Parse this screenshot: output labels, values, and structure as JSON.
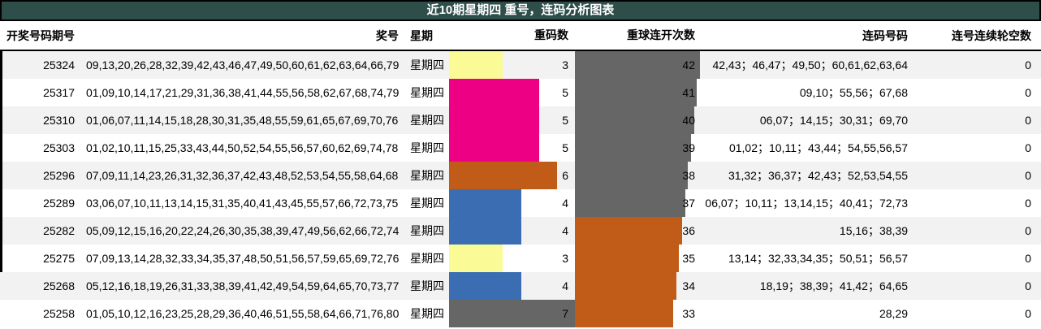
{
  "title": "近10期星期四 重号，连码分析图表",
  "header": {
    "period": "开奖号码期号",
    "numbers": "奖号",
    "week": "星期",
    "dup": "重码数",
    "streak": "重球连开次数",
    "pairs": "连码号码",
    "skip": "连号连续轮空数"
  },
  "colors": {
    "title_bg": "#2E4E4A",
    "stripe": "#F2F2F2",
    "yellow": "#FAFA96",
    "magenta": "#EE0084",
    "orange": "#C05C18",
    "blue": "#3B6DB3",
    "gray": "#666666"
  },
  "scales": {
    "dup_max": 7,
    "streak_max": 42
  },
  "rows": [
    {
      "period": "25324",
      "numbers": "09,13,20,26,28,32,39,42,43,46,47,49,50,60,61,62,63,64,66,79",
      "week": "星期四",
      "dup": "3",
      "dup_color": "yellow",
      "streak": "42",
      "streak_color": "gray",
      "pairs": "42,43；46,47；49,50；60,61,62,63,64",
      "skip": "0"
    },
    {
      "period": "25317",
      "numbers": "01,09,10,14,17,21,29,31,36,38,41,44,55,56,58,62,67,68,74,79",
      "week": "星期四",
      "dup": "5",
      "dup_color": "magenta",
      "streak": "41",
      "streak_color": "gray",
      "pairs": "09,10；55,56；67,68",
      "skip": "0"
    },
    {
      "period": "25310",
      "numbers": "01,06,07,11,14,15,18,28,30,31,35,48,55,59,61,65,67,69,70,76",
      "week": "星期四",
      "dup": "5",
      "dup_color": "magenta",
      "streak": "40",
      "streak_color": "gray",
      "pairs": "06,07；14,15；30,31；69,70",
      "skip": "0"
    },
    {
      "period": "25303",
      "numbers": "01,02,10,11,15,25,33,43,44,50,52,54,55,56,57,60,62,69,74,78",
      "week": "星期四",
      "dup": "5",
      "dup_color": "magenta",
      "streak": "39",
      "streak_color": "gray",
      "pairs": "01,02；10,11；43,44；54,55,56,57",
      "skip": "0"
    },
    {
      "period": "25296",
      "numbers": "07,09,11,14,23,26,31,32,36,37,42,43,48,52,53,54,55,58,64,68",
      "week": "星期四",
      "dup": "6",
      "dup_color": "orange",
      "streak": "38",
      "streak_color": "gray",
      "pairs": "31,32；36,37；42,43；52,53,54,55",
      "skip": "0"
    },
    {
      "period": "25289",
      "numbers": "03,06,07,10,11,13,14,15,31,35,40,41,43,45,55,57,66,72,73,75",
      "week": "星期四",
      "dup": "4",
      "dup_color": "blue",
      "streak": "37",
      "streak_color": "gray",
      "pairs": "06,07；10,11；13,14,15；40,41；72,73",
      "skip": "0"
    },
    {
      "period": "25282",
      "numbers": "05,09,12,15,16,20,22,24,26,30,35,38,39,47,49,56,62,66,72,74",
      "week": "星期四",
      "dup": "4",
      "dup_color": "blue",
      "streak": "36",
      "streak_color": "orange",
      "pairs": "15,16；38,39",
      "skip": "0"
    },
    {
      "period": "25275",
      "numbers": "07,09,13,14,28,32,33,34,35,37,48,50,51,56,57,59,65,69,72,76",
      "week": "星期四",
      "dup": "3",
      "dup_color": "yellow",
      "streak": "35",
      "streak_color": "orange",
      "pairs": "13,14；32,33,34,35；50,51；56,57",
      "skip": "0"
    },
    {
      "period": "25268",
      "numbers": "05,12,16,18,19,26,31,33,38,39,41,42,49,54,59,64,65,70,73,77",
      "week": "星期四",
      "dup": "4",
      "dup_color": "blue",
      "streak": "34",
      "streak_color": "orange",
      "pairs": "18,19；38,39；41,42；64,65",
      "skip": "0"
    },
    {
      "period": "25258",
      "numbers": "01,05,10,12,16,23,25,28,29,36,40,46,51,55,58,64,66,71,76,80",
      "week": "星期四",
      "dup": "7",
      "dup_color": "gray",
      "streak": "33",
      "streak_color": "orange",
      "pairs": "28,29",
      "skip": "0"
    }
  ],
  "chart_data": {
    "type": "table",
    "title": "近10期星期四 重号，连码分析图表",
    "columns": [
      "开奖号码期号",
      "奖号",
      "星期",
      "重码数",
      "重球连开次数",
      "连码号码",
      "连号连续轮空数"
    ],
    "rows": [
      [
        "25324",
        "09,13,20,26,28,32,39,42,43,46,47,49,50,60,61,62,63,64,66,79",
        "星期四",
        3,
        42,
        "42,43；46,47；49,50；60,61,62,63,64",
        0
      ],
      [
        "25317",
        "01,09,10,14,17,21,29,31,36,38,41,44,55,56,58,62,67,68,74,79",
        "星期四",
        5,
        41,
        "09,10；55,56；67,68",
        0
      ],
      [
        "25310",
        "01,06,07,11,14,15,18,28,30,31,35,48,55,59,61,65,67,69,70,76",
        "星期四",
        5,
        40,
        "06,07；14,15；30,31；69,70",
        0
      ],
      [
        "25303",
        "01,02,10,11,15,25,33,43,44,50,52,54,55,56,57,60,62,69,74,78",
        "星期四",
        5,
        39,
        "01,02；10,11；43,44；54,55,56,57",
        0
      ],
      [
        "25296",
        "07,09,11,14,23,26,31,32,36,37,42,43,48,52,53,54,55,58,64,68",
        "星期四",
        6,
        38,
        "31,32；36,37；42,43；52,53,54,55",
        0
      ],
      [
        "25289",
        "03,06,07,10,11,13,14,15,31,35,40,41,43,45,55,57,66,72,73,75",
        "星期四",
        4,
        37,
        "06,07；10,11；13,14,15；40,41；72,73",
        0
      ],
      [
        "25282",
        "05,09,12,15,16,20,22,24,26,30,35,38,39,47,49,56,62,66,72,74",
        "星期四",
        4,
        36,
        "15,16；38,39",
        0
      ],
      [
        "25275",
        "07,09,13,14,28,32,33,34,35,37,48,50,51,56,57,59,65,69,72,76",
        "星期四",
        3,
        35,
        "13,14；32,33,34,35；50,51；56,57",
        0
      ],
      [
        "25268",
        "05,12,16,18,19,26,31,33,38,39,41,42,49,54,59,64,65,70,73,77",
        "星期四",
        4,
        34,
        "18,19；38,39；41,42；64,65",
        0
      ],
      [
        "25258",
        "01,05,10,12,16,23,25,28,29,36,40,46,51,55,58,64,66,71,76,80",
        "星期四",
        7,
        33,
        "28,29",
        0
      ]
    ],
    "embedded_bars": [
      {
        "column": "重码数",
        "axis_max": 7,
        "values": [
          3,
          5,
          5,
          5,
          6,
          4,
          4,
          3,
          4,
          7
        ],
        "bar_colors": [
          "#FAFA96",
          "#EE0084",
          "#EE0084",
          "#EE0084",
          "#C05C18",
          "#3B6DB3",
          "#3B6DB3",
          "#FAFA96",
          "#3B6DB3",
          "#666666"
        ]
      },
      {
        "column": "重球连开次数",
        "axis_max": 42,
        "values": [
          42,
          41,
          40,
          39,
          38,
          37,
          36,
          35,
          34,
          33
        ],
        "bar_colors": [
          "#666666",
          "#666666",
          "#666666",
          "#666666",
          "#666666",
          "#666666",
          "#C05C18",
          "#C05C18",
          "#C05C18",
          "#C05C18"
        ]
      }
    ]
  }
}
